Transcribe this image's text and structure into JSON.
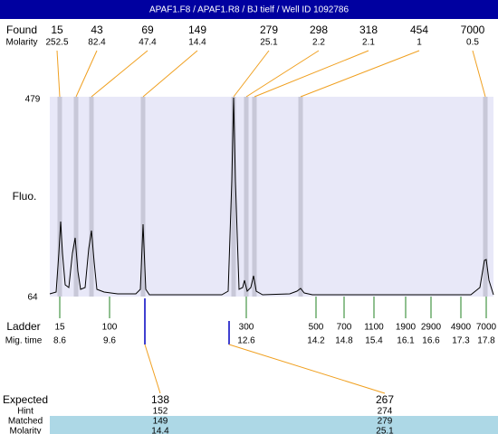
{
  "title": "APAF1.F8 / APAF1.R8 / BJ tielf / Well ID 1092786",
  "found": {
    "label": "Found",
    "sublabel": "Molarity",
    "peaks": [
      {
        "size": "15",
        "molarity": "252.5"
      },
      {
        "size": "43",
        "molarity": "82.4"
      },
      {
        "size": "69",
        "molarity": "47.4"
      },
      {
        "size": "149",
        "molarity": "14.4"
      },
      {
        "size": "279",
        "molarity": "25.1"
      },
      {
        "size": "298",
        "molarity": "2.2"
      },
      {
        "size": "318",
        "molarity": "2.1"
      },
      {
        "size": "454",
        "molarity": "1"
      },
      {
        "size": "7000",
        "molarity": "0.5"
      }
    ]
  },
  "axis": {
    "label": "Fluo.",
    "top": "479",
    "bottom": "64"
  },
  "ladder": {
    "label": "Ladder",
    "sublabel": "Mig. time",
    "items": [
      {
        "size": "15",
        "time": "8.6"
      },
      {
        "size": "100",
        "time": "9.6"
      },
      {
        "size": "300",
        "time": "12.6"
      },
      {
        "size": "500",
        "time": "14.2"
      },
      {
        "size": "700",
        "time": "14.8"
      },
      {
        "size": "1100",
        "time": "15.4"
      },
      {
        "size": "1900",
        "time": "16.1"
      },
      {
        "size": "2900",
        "time": "16.6"
      },
      {
        "size": "4900",
        "time": "17.3"
      },
      {
        "size": "7000",
        "time": "17.8"
      }
    ]
  },
  "expected": {
    "labels": [
      "Expected",
      "Hint",
      "Matched",
      "Molarity"
    ],
    "columns": [
      [
        "138",
        "152",
        "149",
        "14.4"
      ],
      [
        "267",
        "274",
        "279",
        "25.1"
      ]
    ]
  }
}
